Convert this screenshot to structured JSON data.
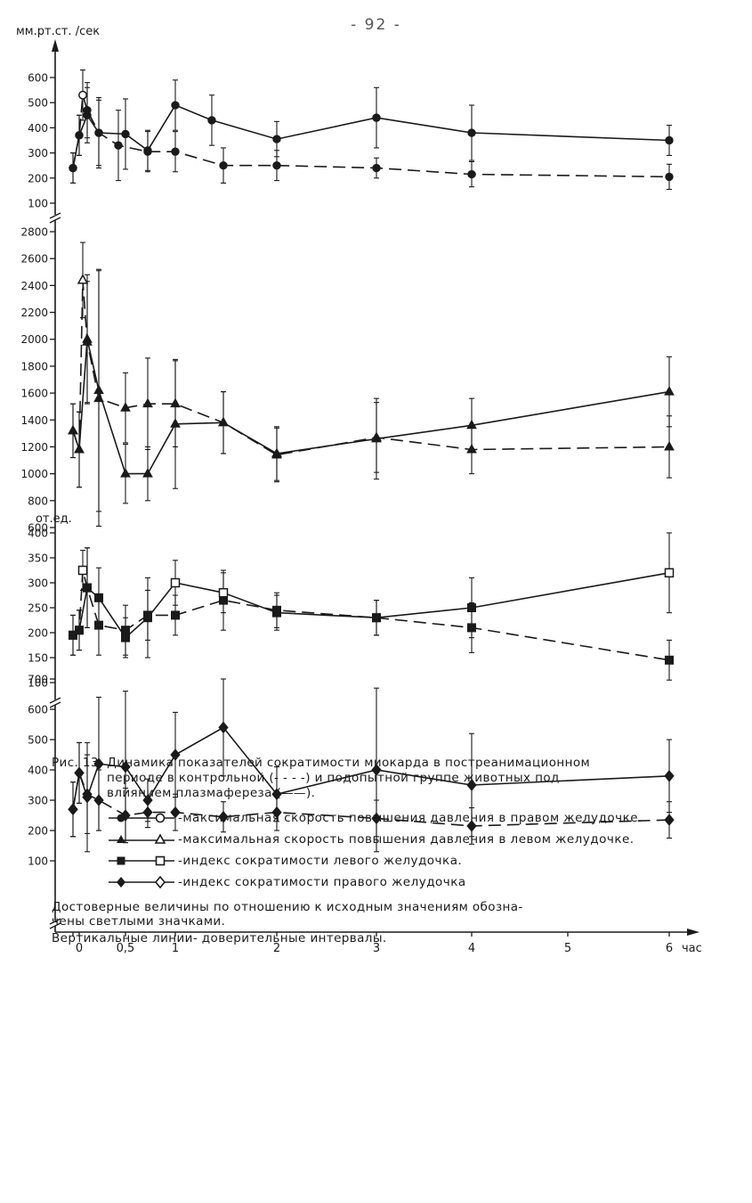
{
  "page_number": "- 92 -",
  "chart_data": [
    {
      "type": "line",
      "ylabel": "мм.рт.ст. /сек",
      "ylim": [
        100,
        650
      ],
      "yticks": [
        100,
        200,
        300,
        400,
        500,
        600
      ],
      "series": [
        {
          "style": "dashed",
          "x": [
            -0.08,
            0,
            0.05,
            0.1,
            0.2,
            0.4,
            0.7,
            1,
            1.5,
            2,
            3,
            4,
            6
          ],
          "y": [
            240,
            370,
            530,
            470,
            380,
            330,
            305,
            305,
            250,
            250,
            240,
            215,
            205
          ],
          "err": [
            60,
            80,
            100,
            110,
            130,
            140,
            80,
            80,
            70,
            60,
            40,
            50,
            50
          ]
        },
        {
          "style": "solid",
          "x": [
            -0.08,
            0,
            0.1,
            0.2,
            0.5,
            0.7,
            1,
            1.3,
            2,
            3,
            4,
            6
          ],
          "y": [
            240,
            370,
            450,
            380,
            375,
            310,
            490,
            430,
            355,
            440,
            380,
            350
          ],
          "err": [
            60,
            80,
            110,
            140,
            140,
            80,
            100,
            100,
            70,
            120,
            110,
            60
          ]
        }
      ]
    },
    {
      "type": "line",
      "ylim": [
        600,
        2850
      ],
      "yticks": [
        600,
        800,
        1000,
        1200,
        1400,
        1600,
        1800,
        2000,
        2200,
        2400,
        2600,
        2800
      ],
      "series": [
        {
          "style": "dashed",
          "x": [
            -0.08,
            0,
            0.05,
            0.1,
            0.2,
            0.5,
            0.7,
            1,
            1.5,
            2,
            3,
            4,
            6
          ],
          "y": [
            1320,
            1180,
            2440,
            1980,
            1560,
            1490,
            1520,
            1520,
            1380,
            1140,
            1270,
            1180,
            1200
          ],
          "err": [
            200,
            280,
            280,
            450,
            950,
            260,
            340,
            320,
            230,
            200,
            260,
            180,
            230
          ]
        },
        {
          "style": "solid",
          "x": [
            -0.08,
            0,
            0.1,
            0.2,
            0.5,
            0.7,
            1,
            1.5,
            2,
            3,
            4,
            6
          ],
          "y": [
            1320,
            1180,
            2000,
            1620,
            1000,
            1000,
            1370,
            1380,
            1150,
            1260,
            1360,
            1610
          ],
          "err": [
            200,
            280,
            480,
            900,
            220,
            200,
            480,
            230,
            200,
            300,
            200,
            260
          ]
        }
      ]
    },
    {
      "type": "line",
      "ylabel": "от.ед.",
      "ylim": [
        100,
        410
      ],
      "yticks": [
        100,
        150,
        200,
        250,
        300,
        350,
        400
      ],
      "series": [
        {
          "style": "dashed",
          "x": [
            -0.08,
            0,
            0.05,
            0.1,
            0.2,
            0.5,
            0.7,
            1,
            1.5,
            2,
            3,
            4,
            6
          ],
          "y": [
            195,
            205,
            325,
            290,
            215,
            205,
            235,
            235,
            265,
            245,
            230,
            210,
            145
          ],
          "err": [
            40,
            40,
            40,
            80,
            60,
            50,
            50,
            40,
            60,
            35,
            35,
            50,
            40
          ]
        },
        {
          "style": "solid",
          "x": [
            -0.08,
            0,
            0.1,
            0.2,
            0.5,
            0.7,
            1,
            1.5,
            2,
            3,
            4,
            6
          ],
          "y": [
            195,
            205,
            290,
            270,
            190,
            230,
            300,
            280,
            240,
            230,
            250,
            320
          ],
          "err": [
            40,
            40,
            80,
            60,
            40,
            80,
            45,
            40,
            35,
            35,
            60,
            80
          ]
        }
      ]
    },
    {
      "type": "line",
      "ylim": [
        0,
        730
      ],
      "yticks": [
        100,
        200,
        300,
        400,
        500,
        600,
        700
      ],
      "xticks": [
        0,
        0.5,
        1,
        2,
        3,
        4,
        5,
        6
      ],
      "xtick_labels": [
        "0",
        "0,5",
        "1",
        "2",
        "3",
        "4",
        "5",
        "6"
      ],
      "xlabel": "час",
      "series": [
        {
          "style": "dashed",
          "x": [
            -0.08,
            0,
            0.1,
            0.2,
            0.5,
            0.7,
            1,
            1.5,
            2,
            3,
            4,
            6
          ],
          "y": [
            270,
            390,
            320,
            300,
            250,
            260,
            260,
            245,
            260,
            240,
            215,
            235
          ],
          "err": [
            90,
            100,
            130,
            100,
            90,
            50,
            60,
            50,
            60,
            60,
            60,
            60
          ]
        },
        {
          "style": "solid",
          "x": [
            -0.08,
            0,
            0.1,
            0.2,
            0.5,
            0.7,
            1,
            1.5,
            2,
            3,
            4,
            6
          ],
          "y": [
            270,
            390,
            310,
            420,
            410,
            300,
            450,
            540,
            320,
            400,
            350,
            380
          ],
          "err": [
            90,
            100,
            180,
            220,
            250,
            70,
            140,
            160,
            90,
            270,
            170,
            120
          ]
        }
      ]
    }
  ],
  "caption": {
    "prefix": "Рис. 13.",
    "line1": "Динамика показателей сократимости миокарда в постреанимационном",
    "line2": "периоде в контрольной (- - - -) и подопытной группе животных под",
    "line3": "влиянием плазмафереза (——)."
  },
  "legend": [
    {
      "marker": "circle",
      "label": "-максимальная скорость повышения давления в правом желудочке."
    },
    {
      "marker": "triangle",
      "label": "-максимальная скорость повышения давления в левом желудочке."
    },
    {
      "marker": "square",
      "label": "-индекс сократимости левого желудочка."
    },
    {
      "marker": "diamond",
      "label": "-индекс сократимости правого желудочка"
    }
  ],
  "notes": {
    "line1": "Достоверные величины по отношению к исходным значениям обозна-",
    "line2": "чены светлыми значками.",
    "line3": "Вертикальные линии- доверительные интервалы."
  },
  "colors": {
    "ink": "#1a1a1a"
  }
}
